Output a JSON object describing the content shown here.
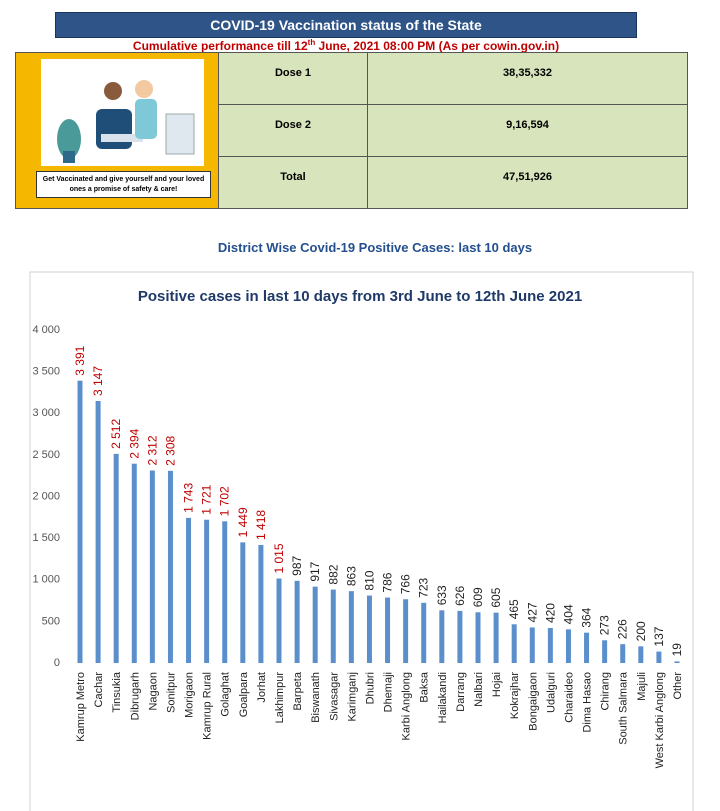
{
  "header": {
    "title": "COVID-19 Vaccination status of the State",
    "subtitle": {
      "before": "Cumulative performance till 12",
      "sup": "th",
      "after": " June, 2021 08:00  PM (As per cowin.gov.in)"
    }
  },
  "table": {
    "caption": "Get Vaccinated and give yourself and your loved ones a promise of safety & care!",
    "rows": [
      [
        "Dose 1",
        "38,35,332"
      ],
      [
        "Dose 2",
        "9,16,594"
      ],
      [
        "Total",
        "47,51,926"
      ]
    ]
  },
  "section_title": "District Wise Covid-19 Positive Cases: last 10 days",
  "chart_data": {
    "type": "bar",
    "title": "Positive cases in last 10 days from 3rd June to 12th June 2021",
    "categories": [
      "Kamrup Metro",
      "Cachar",
      "Tinsukia",
      "Dibrugarh",
      "Nagaon",
      "Sonitpur",
      "Morigaon",
      "Kamrup Rural",
      "Golaghat",
      "Goalpara",
      "Jorhat",
      "Lakhimpur",
      "Barpeta",
      "Biswanath",
      "Sivasagar",
      "Karimganj",
      "Dhubri",
      "Dhemaji",
      "Karbi Anglong",
      "Baksa",
      "Hailakandi",
      "Darrang",
      "Nalbari",
      "Hojai",
      "Kokrajhar",
      "Bongaigaon",
      "Udalguri",
      "Charaideo",
      "Dima Hasao",
      "Chirang",
      "South Salmara",
      "Majuli",
      "West Karbi Anglong",
      "Other"
    ],
    "values": [
      3391,
      3147,
      2512,
      2394,
      2312,
      2308,
      1743,
      1721,
      1702,
      1449,
      1418,
      1015,
      987,
      917,
      882,
      863,
      810,
      786,
      766,
      723,
      633,
      626,
      609,
      605,
      465,
      427,
      420,
      404,
      364,
      273,
      226,
      200,
      137,
      19
    ],
    "value_labels": [
      "3 391",
      "3 147",
      "2 512",
      "2 394",
      "2 312",
      "2 308",
      "1 743",
      "1 721",
      "1 702",
      "1 449",
      "1 418",
      "1 015",
      "987",
      "917",
      "882",
      "863",
      "810",
      "786",
      "766",
      "723",
      "633",
      "626",
      "609",
      "605",
      "465",
      "427",
      "420",
      "404",
      "364",
      "273",
      "226",
      "200",
      "137",
      "19"
    ],
    "value_label_colors": [
      "#c00000",
      "#c00000",
      "#c00000",
      "#c00000",
      "#c00000",
      "#c00000",
      "#c00000",
      "#c00000",
      "#c00000",
      "#c00000",
      "#c00000",
      "#c00000",
      "#222222",
      "#222222",
      "#222222",
      "#222222",
      "#222222",
      "#222222",
      "#222222",
      "#222222",
      "#222222",
      "#222222",
      "#222222",
      "#222222",
      "#222222",
      "#222222",
      "#222222",
      "#222222",
      "#222222",
      "#222222",
      "#222222",
      "#222222",
      "#222222",
      "#222222"
    ],
    "color": "#5b8fcc",
    "ylim": [
      0,
      4000
    ],
    "yticks": [
      0,
      500,
      {
        "value": 1000,
        "label": "1 000"
      },
      {
        "value": 1500,
        "label": "1 500"
      },
      {
        "value": 2000,
        "label": "2 000"
      },
      {
        "value": 2500,
        "label": "2 500"
      },
      {
        "value": 3000,
        "label": "3 000"
      },
      {
        "value": 3500,
        "label": "3 500"
      },
      {
        "value": 4000,
        "label": "4 000"
      }
    ],
    "grid": false
  }
}
